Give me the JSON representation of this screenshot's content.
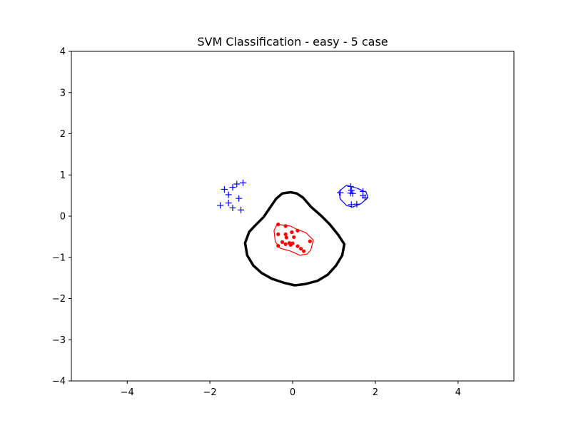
{
  "title": "SVM Classification - easy - 5 case",
  "colors": {
    "class_plus": "#0000ff",
    "class_dot": "#ff0000",
    "decision_boundary": "#000000",
    "axes": "#000000",
    "background": "#ffffff"
  },
  "chart_data": {
    "type": "scatter",
    "title": "SVM Classification - easy - 5 case",
    "xlabel": "",
    "ylabel": "",
    "xlim": [
      -5.35,
      5.35
    ],
    "ylim": [
      -4,
      4
    ],
    "xticks": [
      {
        "value": -4,
        "label": "−4"
      },
      {
        "value": -2,
        "label": "−2"
      },
      {
        "value": 0,
        "label": "0"
      },
      {
        "value": 2,
        "label": "2"
      },
      {
        "value": 4,
        "label": "4"
      }
    ],
    "yticks": [
      {
        "value": 4,
        "label": "4"
      },
      {
        "value": 3,
        "label": "3"
      },
      {
        "value": 2,
        "label": "2"
      },
      {
        "value": 1,
        "label": "1"
      },
      {
        "value": 0,
        "label": "0"
      },
      {
        "value": -1,
        "label": "−1"
      },
      {
        "value": -2,
        "label": "−2"
      },
      {
        "value": -3,
        "label": "−3"
      },
      {
        "value": -4,
        "label": "−4"
      }
    ],
    "grid": false,
    "series": [
      {
        "marker": "plus",
        "color": "#0000ff",
        "points": [
          [
            -1.65,
            0.65
          ],
          [
            -1.45,
            0.7
          ],
          [
            -1.35,
            0.78
          ],
          [
            -1.2,
            0.81
          ],
          [
            -1.55,
            0.52
          ],
          [
            -1.3,
            0.43
          ],
          [
            -1.55,
            0.32
          ],
          [
            -1.75,
            0.26
          ],
          [
            -1.45,
            0.2
          ],
          [
            -1.25,
            0.15
          ],
          [
            1.15,
            0.57
          ],
          [
            1.4,
            0.72
          ],
          [
            1.42,
            0.63
          ],
          [
            1.4,
            0.56
          ],
          [
            1.45,
            0.55
          ],
          [
            1.7,
            0.6
          ],
          [
            1.7,
            0.5
          ],
          [
            1.75,
            0.45
          ],
          [
            1.42,
            0.28
          ],
          [
            1.55,
            0.29
          ]
        ]
      },
      {
        "marker": "dot",
        "color": "#ff0000",
        "points": [
          [
            -0.35,
            -0.2
          ],
          [
            -0.17,
            -0.24
          ],
          [
            0.12,
            -0.35
          ],
          [
            -0.02,
            -0.39
          ],
          [
            -0.35,
            -0.44
          ],
          [
            -0.17,
            -0.44
          ],
          [
            0.03,
            -0.51
          ],
          [
            -0.15,
            -0.52
          ],
          [
            0.42,
            -0.61
          ],
          [
            -0.25,
            -0.63
          ],
          [
            -0.17,
            -0.68
          ],
          [
            -0.08,
            -0.65
          ],
          [
            0.0,
            -0.66
          ],
          [
            -0.05,
            -0.7
          ],
          [
            -0.35,
            -0.72
          ],
          [
            0.12,
            -0.73
          ],
          [
            0.2,
            -0.79
          ],
          [
            0.27,
            -0.85
          ]
        ]
      }
    ],
    "contours": [
      {
        "role": "decision-boundary",
        "color": "#000000",
        "linewidth": "thick",
        "points": [
          [
            -0.4,
            0.42
          ],
          [
            -0.25,
            0.55
          ],
          [
            -0.05,
            0.58
          ],
          [
            0.1,
            0.55
          ],
          [
            0.25,
            0.45
          ],
          [
            0.45,
            0.22
          ],
          [
            0.7,
            0.0
          ],
          [
            0.9,
            -0.2
          ],
          [
            1.1,
            -0.45
          ],
          [
            1.25,
            -0.68
          ],
          [
            1.2,
            -0.95
          ],
          [
            1.05,
            -1.2
          ],
          [
            0.85,
            -1.42
          ],
          [
            0.6,
            -1.57
          ],
          [
            0.3,
            -1.65
          ],
          [
            0.05,
            -1.68
          ],
          [
            -0.2,
            -1.62
          ],
          [
            -0.5,
            -1.52
          ],
          [
            -0.75,
            -1.38
          ],
          [
            -0.95,
            -1.2
          ],
          [
            -1.1,
            -0.95
          ],
          [
            -1.15,
            -0.65
          ],
          [
            -1.05,
            -0.38
          ],
          [
            -0.9,
            -0.22
          ],
          [
            -0.7,
            -0.02
          ],
          [
            -0.55,
            0.2
          ],
          [
            -0.4,
            0.42
          ]
        ]
      },
      {
        "role": "class-dot-region",
        "color": "#ff0000",
        "linewidth": "thin",
        "points": [
          [
            -0.38,
            -0.2
          ],
          [
            -0.05,
            -0.24
          ],
          [
            0.12,
            -0.33
          ],
          [
            0.32,
            -0.4
          ],
          [
            0.5,
            -0.58
          ],
          [
            0.44,
            -0.82
          ],
          [
            0.35,
            -0.92
          ],
          [
            0.18,
            -0.95
          ],
          [
            -0.05,
            -0.85
          ],
          [
            -0.3,
            -0.78
          ],
          [
            -0.42,
            -0.62
          ],
          [
            -0.45,
            -0.35
          ],
          [
            -0.38,
            -0.2
          ]
        ]
      },
      {
        "role": "class-plus-region",
        "color": "#0000ff",
        "linewidth": "thin",
        "points": [
          [
            1.3,
            0.75
          ],
          [
            1.55,
            0.68
          ],
          [
            1.78,
            0.58
          ],
          [
            1.82,
            0.45
          ],
          [
            1.65,
            0.3
          ],
          [
            1.45,
            0.22
          ],
          [
            1.3,
            0.26
          ],
          [
            1.15,
            0.42
          ],
          [
            1.12,
            0.6
          ],
          [
            1.3,
            0.75
          ]
        ]
      }
    ]
  }
}
